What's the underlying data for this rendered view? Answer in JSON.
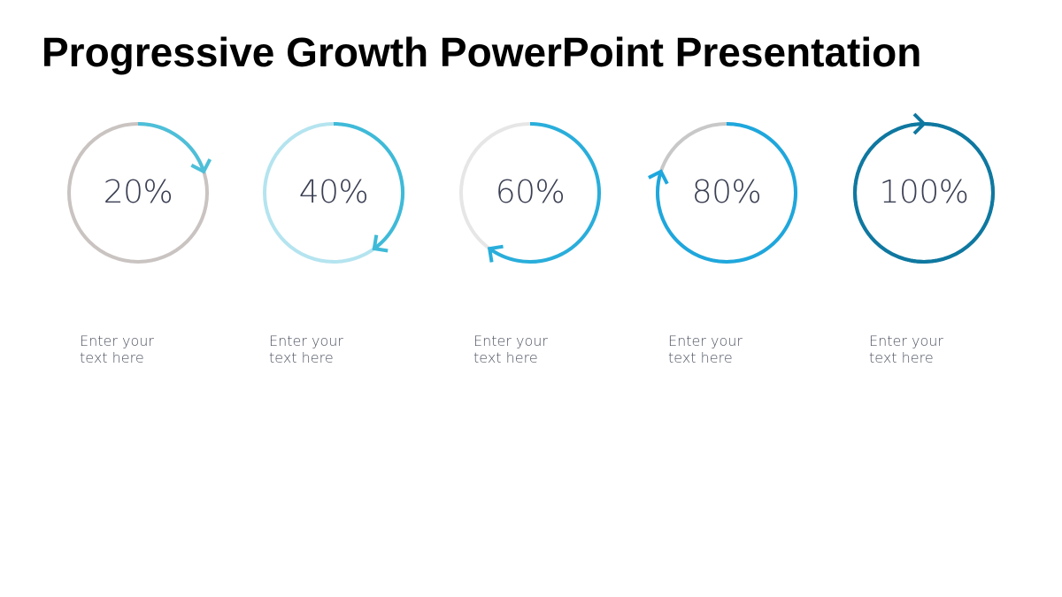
{
  "title": "Progressive Growth PowerPoint Presentation",
  "items": [
    {
      "percent_label": "20%",
      "value": 0.2,
      "caption_line1": "Enter your",
      "caption_line2": "text here",
      "track_color": "#c9c3c1",
      "accent_color": "#4dbfd9"
    },
    {
      "percent_label": "40%",
      "value": 0.4,
      "caption_line1": "Enter your",
      "caption_line2": "text here",
      "track_color": "#b4e4ef",
      "accent_color": "#3fbad8"
    },
    {
      "percent_label": "60%",
      "value": 0.6,
      "caption_line1": "Enter your",
      "caption_line2": "text here",
      "track_color": "#e6e6e6",
      "accent_color": "#29aedb"
    },
    {
      "percent_label": "80%",
      "value": 0.8,
      "caption_line1": "Enter your",
      "caption_line2": "text here",
      "track_color": "#c8c8c8",
      "accent_color": "#1ea7dd"
    },
    {
      "percent_label": "100%",
      "value": 1.0,
      "caption_line1": "Enter your",
      "caption_line2": "text here",
      "track_color": "#0f78a0",
      "accent_color": "#0f78a0"
    }
  ]
}
